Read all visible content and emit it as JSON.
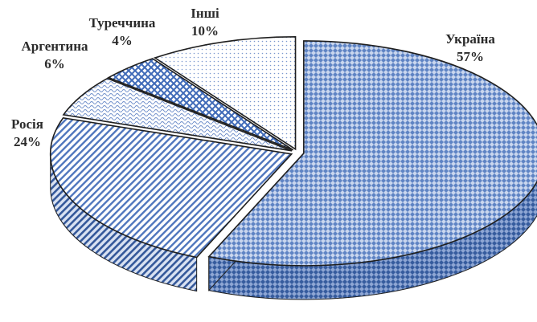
{
  "chart_data": {
    "type": "pie",
    "title": "",
    "slices": [
      {
        "label": "Україна",
        "value": 57,
        "value_label": "57%",
        "color": "#7f9fd0",
        "pattern": "diamond"
      },
      {
        "label": "Росія",
        "value": 24,
        "value_label": "24%",
        "color": "#6a8dc8",
        "pattern": "diagonal"
      },
      {
        "label": "Аргентина",
        "value": 6,
        "value_label": "6%",
        "color": "#8aa6d4",
        "pattern": "wave"
      },
      {
        "label": "Туреччина",
        "value": 4,
        "value_label": "4%",
        "color": "#4d78c0",
        "pattern": "check"
      },
      {
        "label": "Інші",
        "value": 10,
        "value_label": "10%",
        "color": "#9bb3dc",
        "pattern": "dots"
      }
    ],
    "style": "3d-exploded-pie",
    "legend": "none",
    "labels": "outside"
  }
}
